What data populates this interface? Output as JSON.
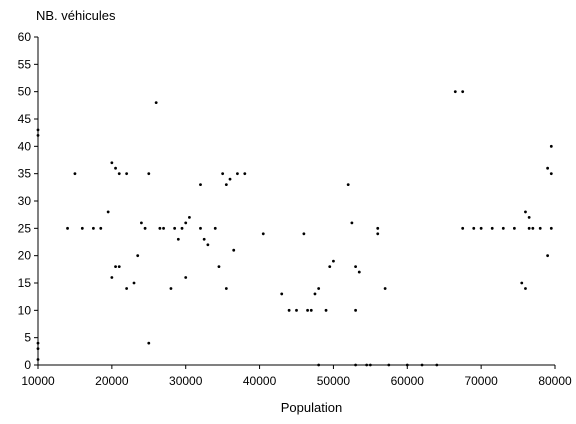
{
  "chart_data": {
    "type": "scatter",
    "title": "",
    "ylabel": "NB. véhicules",
    "xlabel": "Population",
    "xlim": [
      10000,
      80000
    ],
    "ylim": [
      0,
      60
    ],
    "xticks": [
      "10000",
      "20000",
      "30000",
      "40000",
      "50000",
      "60000",
      "70000",
      "80000"
    ],
    "yticks": [
      "0",
      "5",
      "10",
      "15",
      "20",
      "25",
      "30",
      "35",
      "40",
      "45",
      "50",
      "55",
      "60"
    ],
    "grid": false,
    "legend": "none",
    "marker_color": "#000000",
    "series": [
      {
        "points": [
          [
            10000,
            43
          ],
          [
            10000,
            42
          ],
          [
            10000,
            4
          ],
          [
            10000,
            3
          ],
          [
            10000,
            1
          ],
          [
            14000,
            25
          ],
          [
            15000,
            35
          ],
          [
            16000,
            25
          ],
          [
            17500,
            25
          ],
          [
            18500,
            25
          ],
          [
            19500,
            28
          ],
          [
            20000,
            37
          ],
          [
            20500,
            36
          ],
          [
            21000,
            35
          ],
          [
            22000,
            35
          ],
          [
            20000,
            16
          ],
          [
            20500,
            18
          ],
          [
            21000,
            18
          ],
          [
            22000,
            14
          ],
          [
            23000,
            15
          ],
          [
            23500,
            20
          ],
          [
            24000,
            26
          ],
          [
            24500,
            25
          ],
          [
            25000,
            35
          ],
          [
            25000,
            4
          ],
          [
            26000,
            48
          ],
          [
            26500,
            25
          ],
          [
            27000,
            25
          ],
          [
            28000,
            14
          ],
          [
            28500,
            25
          ],
          [
            29000,
            23
          ],
          [
            29500,
            25
          ],
          [
            30000,
            16
          ],
          [
            30000,
            26
          ],
          [
            30500,
            27
          ],
          [
            32000,
            33
          ],
          [
            32000,
            25
          ],
          [
            32500,
            23
          ],
          [
            33000,
            22
          ],
          [
            34000,
            25
          ],
          [
            34500,
            18
          ],
          [
            35000,
            35
          ],
          [
            35500,
            33
          ],
          [
            36000,
            34
          ],
          [
            36500,
            21
          ],
          [
            37000,
            35
          ],
          [
            38000,
            35
          ],
          [
            35500,
            14
          ],
          [
            40500,
            24
          ],
          [
            43000,
            13
          ],
          [
            44000,
            10
          ],
          [
            45000,
            10
          ],
          [
            46000,
            24
          ],
          [
            46500,
            10
          ],
          [
            47000,
            10
          ],
          [
            47500,
            13
          ],
          [
            48000,
            14
          ],
          [
            48000,
            0
          ],
          [
            49000,
            10
          ],
          [
            49500,
            18
          ],
          [
            50000,
            19
          ],
          [
            52000,
            33
          ],
          [
            52500,
            26
          ],
          [
            53000,
            18
          ],
          [
            53500,
            17
          ],
          [
            53000,
            10
          ],
          [
            53000,
            0
          ],
          [
            54500,
            0
          ],
          [
            55000,
            0
          ],
          [
            56000,
            24
          ],
          [
            56000,
            25
          ],
          [
            57000,
            14
          ],
          [
            57500,
            0
          ],
          [
            60000,
            0
          ],
          [
            62000,
            0
          ],
          [
            64000,
            0
          ],
          [
            66500,
            50
          ],
          [
            67500,
            50
          ],
          [
            67500,
            25
          ],
          [
            69000,
            25
          ],
          [
            70000,
            25
          ],
          [
            71500,
            25
          ],
          [
            73000,
            25
          ],
          [
            74500,
            25
          ],
          [
            76000,
            28
          ],
          [
            76500,
            27
          ],
          [
            76500,
            25
          ],
          [
            77000,
            25
          ],
          [
            78000,
            25
          ],
          [
            79500,
            25
          ],
          [
            76000,
            14
          ],
          [
            75500,
            15
          ],
          [
            79000,
            36
          ],
          [
            79500,
            35
          ],
          [
            79000,
            20
          ],
          [
            79500,
            40
          ]
        ]
      }
    ]
  }
}
